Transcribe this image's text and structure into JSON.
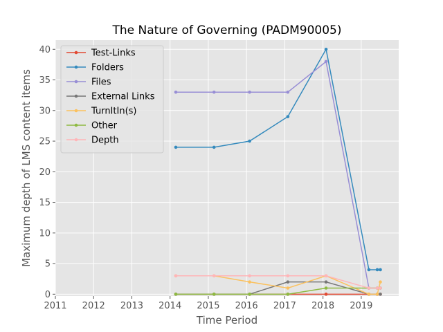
{
  "chart_data": {
    "type": "line",
    "title": "The Nature of Governing (PADM90005)",
    "xlabel": "Time Period",
    "ylabel": "Maximum depth of LMS content items",
    "xlim": [
      2011,
      2019.98
    ],
    "ylim": [
      -0.3,
      41.5
    ],
    "x_ticks": [
      "2011",
      "2012",
      "2013",
      "2014",
      "2015",
      "2016",
      "2017",
      "2018",
      "2019"
    ],
    "y_ticks": [
      "0",
      "5",
      "10",
      "15",
      "20",
      "25",
      "30",
      "35",
      "40"
    ],
    "grid": true,
    "legend_position": "top-left",
    "background": "#e5e5e5",
    "series": [
      {
        "name": "Test-Links",
        "color": "#e24a33",
        "points": [
          [
            2014.15,
            0
          ],
          [
            2015.15,
            0
          ],
          [
            2016.08,
            0
          ],
          [
            2017.08,
            0
          ],
          [
            2018.08,
            0
          ],
          [
            2019.2,
            0
          ],
          [
            2019.42,
            0
          ],
          [
            2019.5,
            0
          ]
        ]
      },
      {
        "name": "Folders",
        "color": "#348abd",
        "points": [
          [
            2014.15,
            24
          ],
          [
            2015.15,
            24
          ],
          [
            2016.08,
            25
          ],
          [
            2017.08,
            29
          ],
          [
            2018.08,
            40
          ],
          [
            2019.2,
            4
          ],
          [
            2019.42,
            4
          ],
          [
            2019.5,
            4
          ]
        ]
      },
      {
        "name": "Files",
        "color": "#988ed5",
        "points": [
          [
            2014.15,
            33
          ],
          [
            2015.15,
            33
          ],
          [
            2016.08,
            33
          ],
          [
            2017.08,
            33
          ],
          [
            2018.08,
            38
          ],
          [
            2019.2,
            1
          ],
          [
            2019.42,
            1
          ],
          [
            2019.5,
            1
          ]
        ]
      },
      {
        "name": "External Links",
        "color": "#777777",
        "points": [
          [
            2014.15,
            0
          ],
          [
            2015.15,
            0
          ],
          [
            2016.08,
            0
          ],
          [
            2017.08,
            2
          ],
          [
            2018.08,
            2
          ],
          [
            2019.2,
            0
          ],
          [
            2019.42,
            0
          ],
          [
            2019.5,
            0
          ]
        ]
      },
      {
        "name": "TurnItIn(s)",
        "color": "#fbc15e",
        "points": [
          [
            2014.15,
            3
          ],
          [
            2015.15,
            3
          ],
          [
            2016.08,
            2
          ],
          [
            2017.08,
            1
          ],
          [
            2018.08,
            3
          ],
          [
            2019.2,
            0
          ],
          [
            2019.42,
            0
          ],
          [
            2019.5,
            2
          ]
        ]
      },
      {
        "name": "Other",
        "color": "#8eba42",
        "points": [
          [
            2014.15,
            0
          ],
          [
            2015.15,
            0
          ],
          [
            2016.08,
            0
          ],
          [
            2017.08,
            0
          ],
          [
            2018.08,
            1
          ],
          [
            2019.2,
            1
          ],
          [
            2019.42,
            1
          ],
          [
            2019.5,
            1
          ]
        ]
      },
      {
        "name": "Depth",
        "color": "#ffb5b8",
        "points": [
          [
            2014.15,
            3
          ],
          [
            2015.15,
            3
          ],
          [
            2016.08,
            3
          ],
          [
            2017.08,
            3
          ],
          [
            2018.08,
            3
          ],
          [
            2019.2,
            1
          ],
          [
            2019.42,
            1
          ],
          [
            2019.5,
            1
          ]
        ]
      }
    ]
  }
}
